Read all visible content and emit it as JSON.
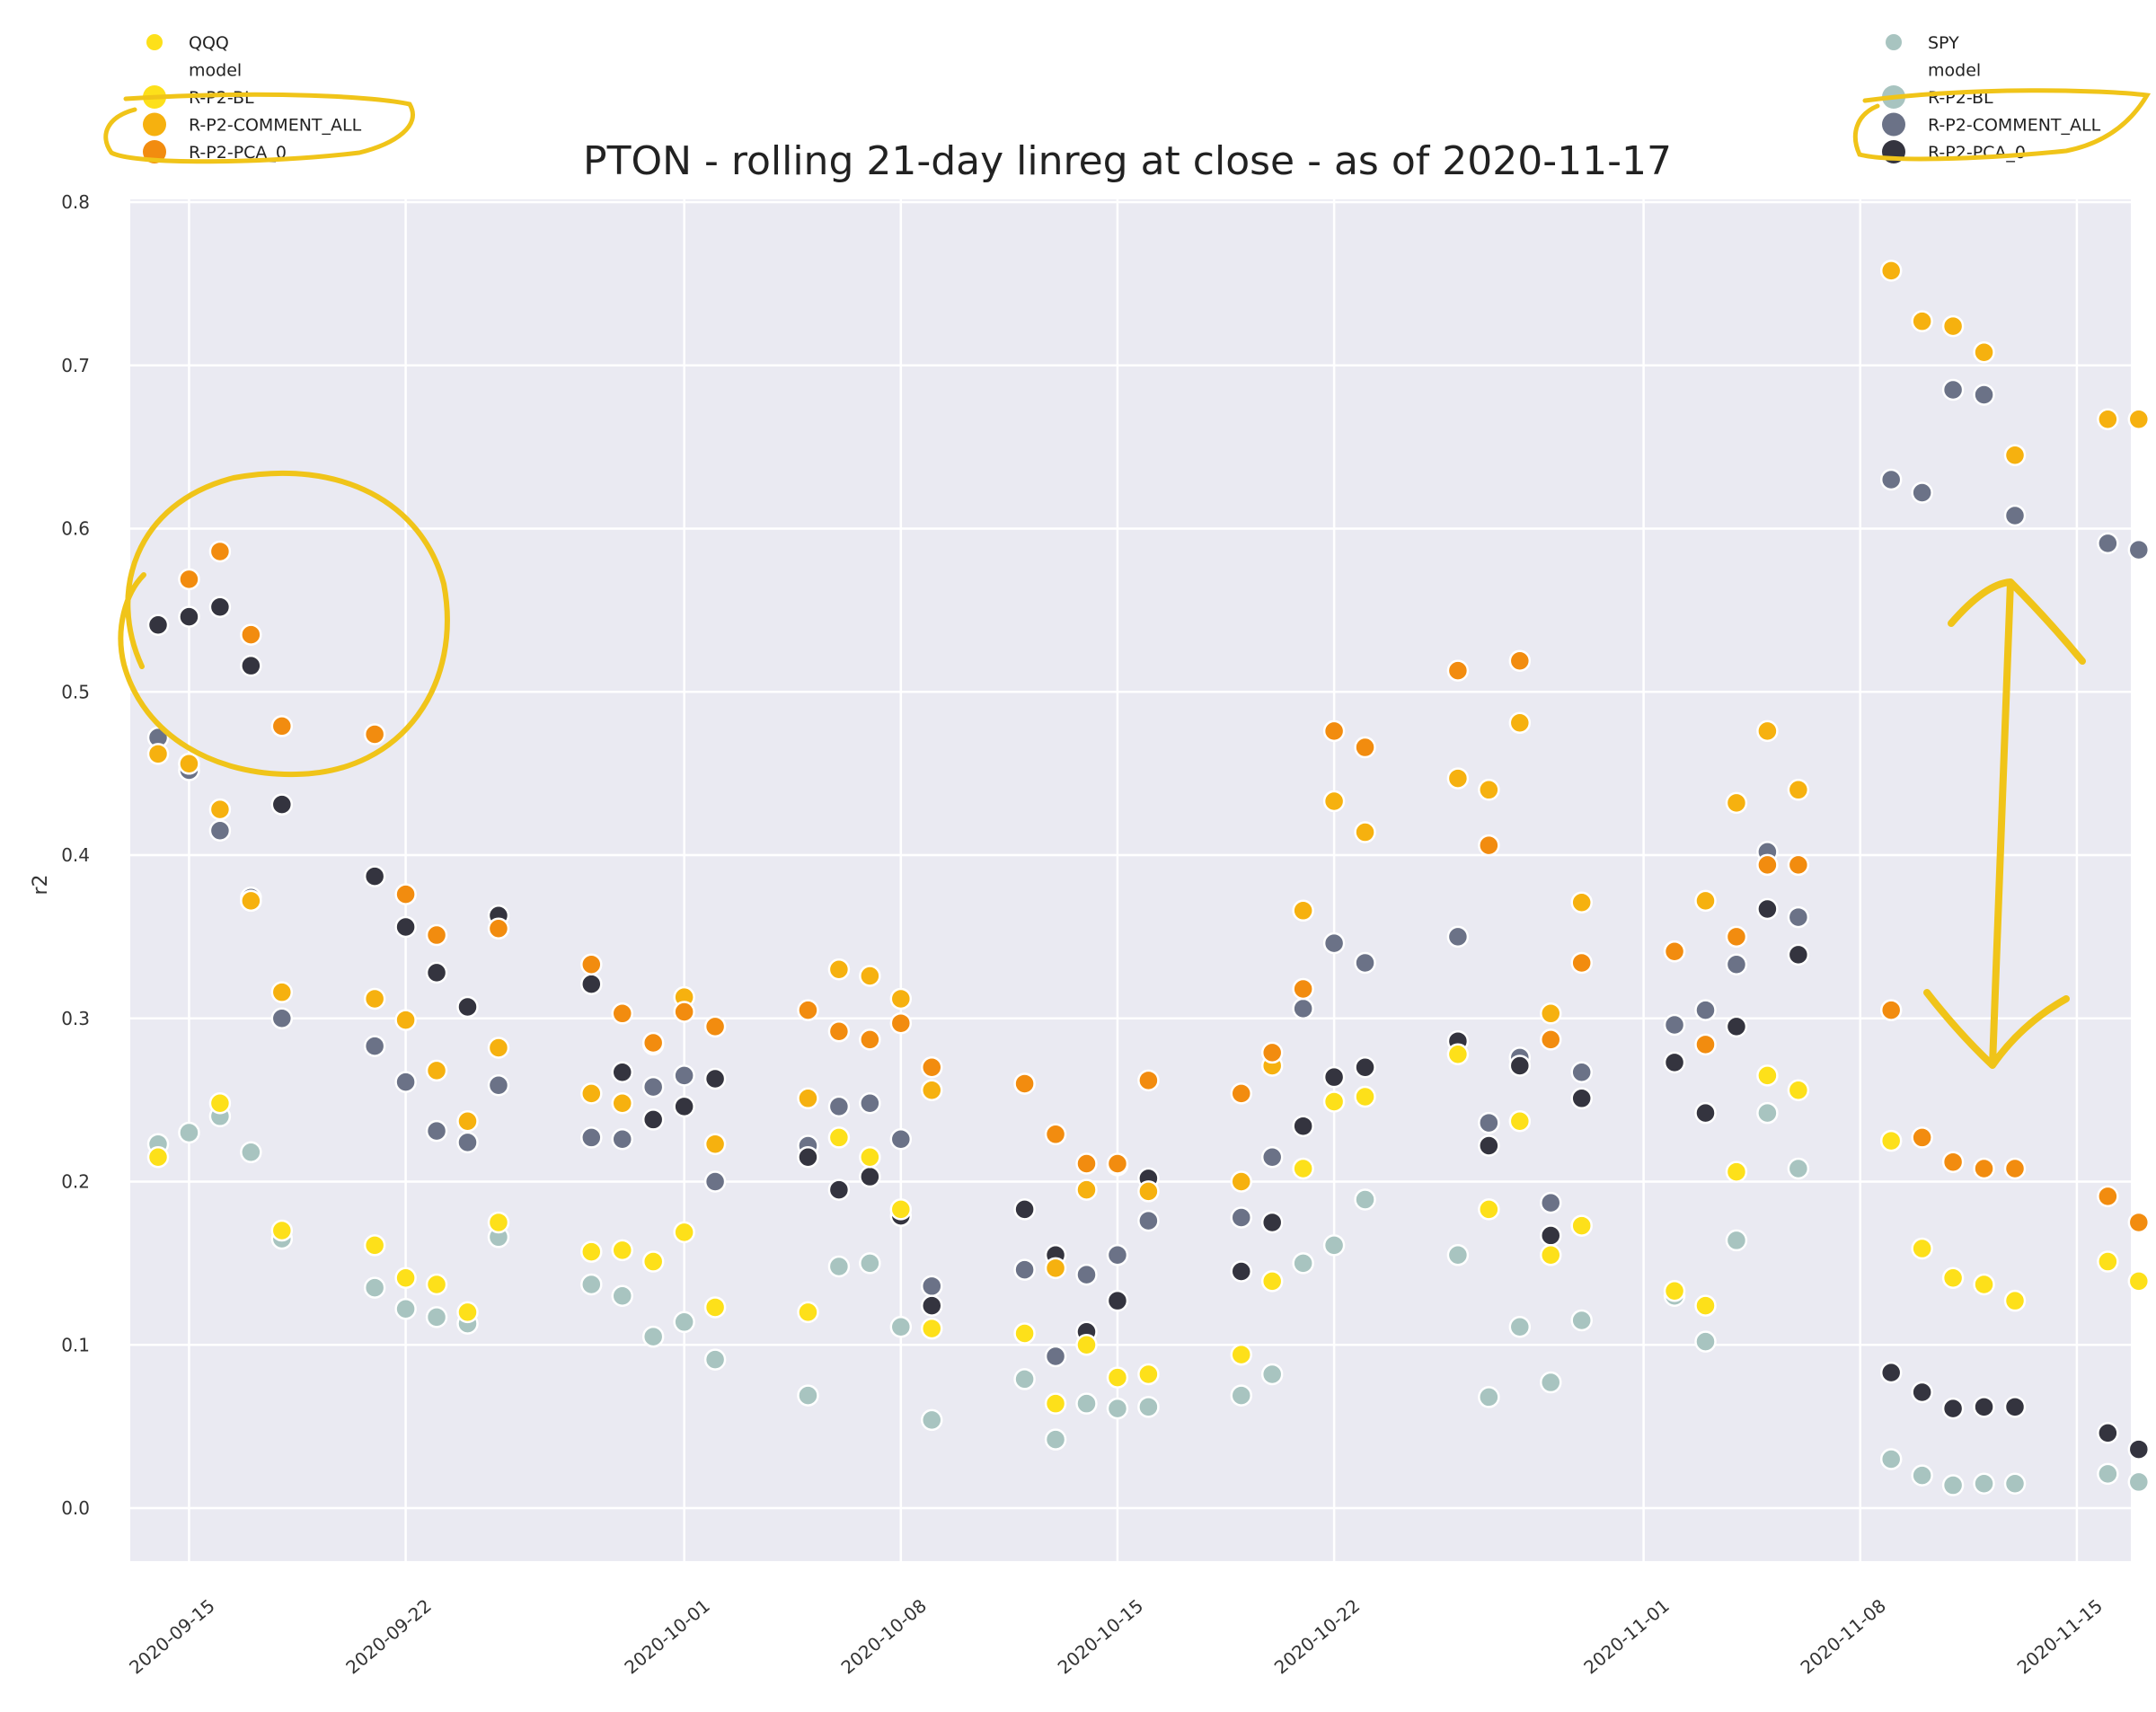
{
  "chart_data": {
    "type": "scatter",
    "title": "PTON - rolling 21-day linreg at close - as of 2020-11-17",
    "ylabel": "r2",
    "xlabel": "",
    "ylim": [
      0.0,
      0.8
    ],
    "xlim": [
      "2020-09-14",
      "2020-11-17"
    ],
    "grid": true,
    "yticks": [
      "0.0",
      "0.1",
      "0.2",
      "0.3",
      "0.4",
      "0.5",
      "0.6",
      "0.7",
      "0.8"
    ],
    "xticks": [
      "2020-09-15",
      "2020-09-22",
      "2020-10-01",
      "2020-10-08",
      "2020-10-15",
      "2020-10-22",
      "2020-11-01",
      "2020-11-08",
      "2020-11-15"
    ],
    "legends": [
      {
        "position": "top-left",
        "hue": "QQQ",
        "style_title": "model",
        "entries": [
          {
            "label": "QQQ",
            "color": "#fde01a"
          },
          {
            "label": "R-P2-BL",
            "color": "#fde01a"
          },
          {
            "label": "R-P2-COMMENT_ALL",
            "color": "#f6b10f"
          },
          {
            "label": "R-P2-PCA_0",
            "color": "#f28c0f"
          }
        ]
      },
      {
        "position": "top-right",
        "hue": "SPY",
        "style_title": "model",
        "entries": [
          {
            "label": "SPY",
            "color": "#a8c4c0"
          },
          {
            "label": "R-P2-BL",
            "color": "#a8c4c0"
          },
          {
            "label": "R-P2-COMMENT_ALL",
            "color": "#6b7287"
          },
          {
            "label": "R-P2-PCA_0",
            "color": "#34343f"
          }
        ]
      }
    ],
    "colors": {
      "QQQ R-P2-BL": "#fde01a",
      "QQQ R-P2-COMMENT_ALL": "#f6b10f",
      "QQQ R-P2-PCA_0": "#f28c0f",
      "SPY R-P2-BL": "#a8c4c0",
      "SPY R-P2-COMMENT_ALL": "#6b7287",
      "SPY R-P2-PCA_0": "#34343f",
      "plot_background": "#eaeaf2",
      "grid": "#ffffff",
      "highlight": "#f0c419"
    },
    "series": [
      {
        "key": "QQQ R-P2-BL",
        "x": [
          "2020-09-14",
          "2020-09-15",
          "2020-09-16",
          "2020-09-17",
          "2020-09-18",
          "2020-09-21",
          "2020-09-22",
          "2020-09-23",
          "2020-09-24",
          "2020-09-25",
          "2020-09-28",
          "2020-09-29",
          "2020-09-30",
          "2020-10-01",
          "2020-10-02",
          "2020-10-05",
          "2020-10-06",
          "2020-10-07",
          "2020-10-08",
          "2020-10-09",
          "2020-10-12",
          "2020-10-13",
          "2020-10-14",
          "2020-10-15",
          "2020-10-16",
          "2020-10-19",
          "2020-10-20",
          "2020-10-21",
          "2020-10-22",
          "2020-10-23",
          "2020-10-26",
          "2020-10-27",
          "2020-10-28",
          "2020-10-29",
          "2020-10-30",
          "2020-11-02",
          "2020-11-03",
          "2020-11-04",
          "2020-11-05",
          "2020-11-06",
          "2020-11-09",
          "2020-11-10",
          "2020-11-11",
          "2020-11-12",
          "2020-11-13",
          "2020-11-16",
          "2020-11-17"
        ],
        "y": [
          0.215,
          0.456,
          0.248,
          0.372,
          0.17,
          0.161,
          0.141,
          0.137,
          0.12,
          0.175,
          0.157,
          0.158,
          0.151,
          0.169,
          0.123,
          0.12,
          0.227,
          0.215,
          0.183,
          0.11,
          0.107,
          0.064,
          0.1,
          0.08,
          0.082,
          0.094,
          0.139,
          0.208,
          0.249,
          0.252,
          0.278,
          0.183,
          0.237,
          0.155,
          0.173,
          0.133,
          0.124,
          0.206,
          0.265,
          0.256,
          0.225,
          0.159,
          0.141,
          0.137,
          0.127,
          0.151,
          0.139
        ]
      },
      {
        "key": "QQQ R-P2-COMMENT_ALL",
        "x": [
          "2020-09-14",
          "2020-09-15",
          "2020-09-16",
          "2020-09-17",
          "2020-09-18",
          "2020-09-21",
          "2020-09-22",
          "2020-09-23",
          "2020-09-24",
          "2020-09-25",
          "2020-09-28",
          "2020-09-29",
          "2020-09-30",
          "2020-10-01",
          "2020-10-02",
          "2020-10-05",
          "2020-10-06",
          "2020-10-07",
          "2020-10-08",
          "2020-10-09",
          "2020-10-12",
          "2020-10-13",
          "2020-10-14",
          "2020-10-15",
          "2020-10-16",
          "2020-10-19",
          "2020-10-20",
          "2020-10-21",
          "2020-10-22",
          "2020-10-23",
          "2020-10-26",
          "2020-10-27",
          "2020-10-28",
          "2020-10-29",
          "2020-10-30",
          "2020-11-02",
          "2020-11-03",
          "2020-11-04",
          "2020-11-05",
          "2020-11-06",
          "2020-11-09",
          "2020-11-10",
          "2020-11-11",
          "2020-11-12",
          "2020-11-13",
          "2020-11-16",
          "2020-11-17"
        ],
        "y": [
          0.462,
          0.456,
          0.428,
          0.372,
          0.316,
          0.312,
          0.299,
          0.268,
          0.237,
          0.282,
          0.254,
          0.248,
          0.284,
          0.313,
          0.223,
          0.251,
          0.33,
          0.326,
          0.312,
          0.256,
          0.26,
          0.147,
          0.195,
          0.21,
          0.194,
          0.2,
          0.271,
          0.366,
          0.433,
          0.414,
          0.447,
          0.44,
          0.481,
          0.303,
          0.371,
          0.341,
          0.372,
          0.432,
          0.476,
          0.44,
          0.758,
          0.727,
          0.724,
          0.708,
          0.645,
          0.667,
          0.667
        ]
      },
      {
        "key": "QQQ R-P2-PCA_0",
        "x": [
          "2020-09-15",
          "2020-09-16",
          "2020-09-17",
          "2020-09-18",
          "2020-09-21",
          "2020-09-22",
          "2020-09-23",
          "2020-09-25",
          "2020-09-28",
          "2020-09-29",
          "2020-09-30",
          "2020-10-01",
          "2020-10-02",
          "2020-10-05",
          "2020-10-06",
          "2020-10-07",
          "2020-10-08",
          "2020-10-09",
          "2020-10-12",
          "2020-10-13",
          "2020-10-14",
          "2020-10-15",
          "2020-10-16",
          "2020-10-19",
          "2020-10-20",
          "2020-10-21",
          "2020-10-22",
          "2020-10-23",
          "2020-10-26",
          "2020-10-27",
          "2020-10-28",
          "2020-10-29",
          "2020-10-30",
          "2020-11-02",
          "2020-11-03",
          "2020-11-04",
          "2020-11-05",
          "2020-11-06",
          "2020-11-09",
          "2020-11-10",
          "2020-11-11",
          "2020-11-12",
          "2020-11-13",
          "2020-11-16",
          "2020-11-17"
        ],
        "y": [
          0.569,
          0.586,
          0.535,
          0.479,
          0.474,
          0.376,
          0.351,
          0.355,
          0.333,
          0.303,
          0.285,
          0.304,
          0.295,
          0.305,
          0.292,
          0.287,
          0.297,
          0.27,
          0.26,
          0.229,
          0.211,
          0.211,
          0.262,
          0.254,
          0.279,
          0.318,
          0.476,
          0.466,
          0.513,
          0.406,
          0.519,
          0.287,
          0.334,
          0.341,
          0.284,
          0.35,
          0.394,
          0.394,
          0.305,
          0.227,
          0.212,
          0.208,
          0.208,
          0.191,
          0.175
        ]
      },
      {
        "key": "SPY R-P2-BL",
        "x": [
          "2020-09-14",
          "2020-09-15",
          "2020-09-16",
          "2020-09-17",
          "2020-09-18",
          "2020-09-21",
          "2020-09-22",
          "2020-09-23",
          "2020-09-24",
          "2020-09-25",
          "2020-09-28",
          "2020-09-29",
          "2020-09-30",
          "2020-10-01",
          "2020-10-02",
          "2020-10-05",
          "2020-10-06",
          "2020-10-07",
          "2020-10-08",
          "2020-10-09",
          "2020-10-12",
          "2020-10-13",
          "2020-10-14",
          "2020-10-15",
          "2020-10-16",
          "2020-10-19",
          "2020-10-20",
          "2020-10-21",
          "2020-10-22",
          "2020-10-23",
          "2020-10-26",
          "2020-10-27",
          "2020-10-28",
          "2020-10-29",
          "2020-10-30",
          "2020-11-02",
          "2020-11-03",
          "2020-11-04",
          "2020-11-05",
          "2020-11-06",
          "2020-11-09",
          "2020-11-10",
          "2020-11-11",
          "2020-11-12",
          "2020-11-13",
          "2020-11-16",
          "2020-11-17"
        ],
        "y": [
          0.223,
          0.23,
          0.24,
          0.218,
          0.165,
          0.135,
          0.122,
          0.117,
          0.113,
          0.166,
          0.137,
          0.13,
          0.105,
          0.114,
          0.091,
          0.069,
          0.148,
          0.15,
          0.111,
          0.054,
          0.079,
          0.042,
          0.064,
          0.061,
          0.062,
          0.069,
          0.082,
          0.15,
          0.161,
          0.189,
          0.155,
          0.068,
          0.111,
          0.077,
          0.115,
          0.13,
          0.102,
          0.164,
          0.242,
          0.208,
          0.03,
          0.02,
          0.014,
          0.015,
          0.015,
          0.021,
          0.016
        ]
      },
      {
        "key": "SPY R-P2-COMMENT_ALL",
        "x": [
          "2020-09-14",
          "2020-09-15",
          "2020-09-16",
          "2020-09-17",
          "2020-09-18",
          "2020-09-21",
          "2020-09-22",
          "2020-09-23",
          "2020-09-24",
          "2020-09-25",
          "2020-09-28",
          "2020-09-29",
          "2020-09-30",
          "2020-10-01",
          "2020-10-02",
          "2020-10-05",
          "2020-10-06",
          "2020-10-07",
          "2020-10-08",
          "2020-10-09",
          "2020-10-12",
          "2020-10-13",
          "2020-10-14",
          "2020-10-15",
          "2020-10-16",
          "2020-10-19",
          "2020-10-20",
          "2020-10-21",
          "2020-10-22",
          "2020-10-23",
          "2020-10-26",
          "2020-10-27",
          "2020-10-28",
          "2020-10-29",
          "2020-10-30",
          "2020-11-02",
          "2020-11-03",
          "2020-11-04",
          "2020-11-05",
          "2020-11-06",
          "2020-11-09",
          "2020-11-10",
          "2020-11-11",
          "2020-11-12",
          "2020-11-13",
          "2020-11-16",
          "2020-11-17"
        ],
        "y": [
          0.472,
          0.452,
          0.415,
          0.374,
          0.3,
          0.283,
          0.261,
          0.231,
          0.224,
          0.259,
          0.227,
          0.226,
          0.258,
          0.265,
          0.2,
          0.222,
          0.246,
          0.248,
          0.226,
          0.136,
          0.146,
          0.093,
          0.143,
          0.155,
          0.176,
          0.178,
          0.215,
          0.306,
          0.346,
          0.334,
          0.35,
          0.236,
          0.276,
          0.187,
          0.267,
          0.296,
          0.305,
          0.333,
          0.402,
          0.362,
          0.63,
          0.622,
          0.685,
          0.682,
          0.608,
          0.591,
          0.587
        ]
      },
      {
        "key": "SPY R-P2-PCA_0",
        "x": [
          "2020-09-14",
          "2020-09-15",
          "2020-09-16",
          "2020-09-17",
          "2020-09-18",
          "2020-09-21",
          "2020-09-22",
          "2020-09-23",
          "2020-09-24",
          "2020-09-25",
          "2020-09-28",
          "2020-09-29",
          "2020-09-30",
          "2020-10-01",
          "2020-10-02",
          "2020-10-05",
          "2020-10-06",
          "2020-10-07",
          "2020-10-08",
          "2020-10-09",
          "2020-10-12",
          "2020-10-13",
          "2020-10-14",
          "2020-10-15",
          "2020-10-16",
          "2020-10-19",
          "2020-10-20",
          "2020-10-21",
          "2020-10-22",
          "2020-10-23",
          "2020-10-26",
          "2020-10-27",
          "2020-10-28",
          "2020-10-29",
          "2020-10-30",
          "2020-11-02",
          "2020-11-03",
          "2020-11-04",
          "2020-11-05",
          "2020-11-06",
          "2020-11-09",
          "2020-11-10",
          "2020-11-11",
          "2020-11-12",
          "2020-11-13",
          "2020-11-16",
          "2020-11-17"
        ],
        "y": [
          0.541,
          0.546,
          0.552,
          0.516,
          0.431,
          0.387,
          0.356,
          0.328,
          0.307,
          0.363,
          0.321,
          0.267,
          0.238,
          0.246,
          0.263,
          0.215,
          0.195,
          0.203,
          0.179,
          0.124,
          0.183,
          0.155,
          0.108,
          0.127,
          0.202,
          0.145,
          0.175,
          0.234,
          0.264,
          0.27,
          0.286,
          0.222,
          0.271,
          0.167,
          0.251,
          0.273,
          0.242,
          0.295,
          0.367,
          0.339,
          0.083,
          0.071,
          0.061,
          0.062,
          0.062,
          0.046,
          0.036
        ]
      }
    ],
    "annotations": [
      {
        "type": "circle",
        "target": "cluster 2020-09-14 to 2020-09-21, r2 0.47 to 0.59"
      },
      {
        "type": "double-arrow",
        "target": "2020-11-13, r2 0.24 to 0.57"
      },
      {
        "type": "underline",
        "target": "legend R-P2-BL to R-P2-PCA_0, top-left"
      },
      {
        "type": "underline",
        "target": "legend R-P2-BL to R-P2-PCA_0, top-right"
      }
    ]
  }
}
